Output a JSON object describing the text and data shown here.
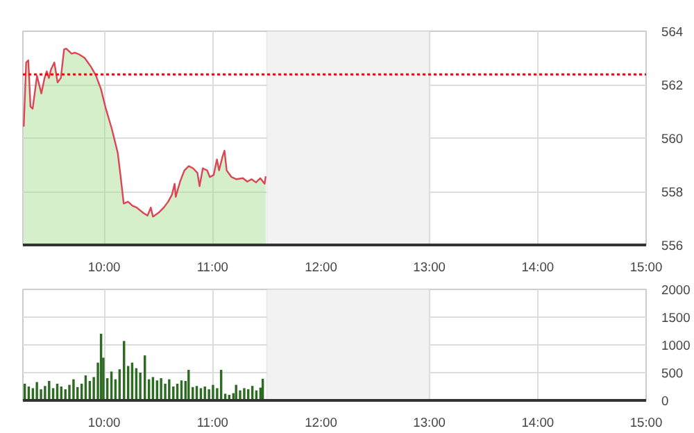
{
  "chart_data": [
    {
      "type": "area",
      "xlim": [
        9.25,
        15
      ],
      "ylim": [
        556,
        564
      ],
      "yticks": [
        556,
        558,
        560,
        562,
        564
      ],
      "xticks": [
        {
          "value": 10,
          "label": "10:00"
        },
        {
          "value": 11,
          "label": "11:00"
        },
        {
          "value": 12,
          "label": "12:00"
        },
        {
          "value": 13,
          "label": "13:00"
        },
        {
          "value": 14,
          "label": "14:00"
        },
        {
          "value": 15,
          "label": "15:00"
        }
      ],
      "grid": true,
      "ref_lines": [
        {
          "axis": "y",
          "value": 562.38,
          "color": "#ff0000",
          "line_style": "dotted"
        }
      ],
      "bands": [
        {
          "axis": "x",
          "from": 11.5,
          "to": 13,
          "color": "#f2f2f2"
        }
      ],
      "series": [
        {
          "type": "area",
          "color": "#9fdc8a",
          "x": [
            9.258,
            9.28,
            9.3,
            9.32,
            9.34,
            9.38,
            9.42,
            9.45,
            9.47,
            9.49,
            9.51,
            9.54,
            9.57,
            9.6,
            9.63,
            9.65,
            9.7,
            9.73,
            9.77,
            9.82,
            9.88,
            9.925,
            9.97,
            10.01,
            10.07,
            10.125,
            10.15,
            10.18,
            10.22,
            10.26,
            10.3,
            10.36,
            10.4,
            10.43,
            10.45,
            10.5,
            10.55,
            10.59,
            10.625,
            10.65,
            10.66,
            10.7,
            10.74,
            10.78,
            10.82,
            10.86,
            10.88,
            10.91,
            10.95,
            10.975,
            11.01,
            11.04,
            11.06,
            11.09,
            11.11,
            11.13,
            11.175,
            11.22,
            11.28,
            11.32,
            11.36,
            11.4,
            11.44,
            11.48,
            11.49
          ],
          "values": [
            560.43,
            562.83,
            562.91,
            561.18,
            561.1,
            562.33,
            561.67,
            562.25,
            562.5,
            562.25,
            562.58,
            562.83,
            562.08,
            562.25,
            563.32,
            563.35,
            563.16,
            563.2,
            563.13,
            563.0,
            562.66,
            562.33,
            561.84,
            561.18,
            560.35,
            559.45,
            558.62,
            557.55,
            557.62,
            557.47,
            557.4,
            557.2,
            557.1,
            557.4,
            557.06,
            557.2,
            557.4,
            557.62,
            557.88,
            558.29,
            557.8,
            558.37,
            558.79,
            558.95,
            558.87,
            558.7,
            558.2,
            558.87,
            558.79,
            558.54,
            558.62,
            559.2,
            558.79,
            559.28,
            559.53,
            558.79,
            558.54,
            558.46,
            558.5,
            558.37,
            558.46,
            558.34,
            558.5,
            558.29,
            558.57
          ]
        },
        {
          "type": "line",
          "color": "#dd4455",
          "x": [
            9.258,
            9.28,
            9.3,
            9.32,
            9.34,
            9.38,
            9.42,
            9.45,
            9.47,
            9.49,
            9.51,
            9.54,
            9.57,
            9.6,
            9.63,
            9.65,
            9.7,
            9.73,
            9.77,
            9.82,
            9.88,
            9.925,
            9.97,
            10.01,
            10.07,
            10.125,
            10.15,
            10.18,
            10.22,
            10.26,
            10.3,
            10.36,
            10.4,
            10.43,
            10.45,
            10.5,
            10.55,
            10.59,
            10.625,
            10.65,
            10.66,
            10.7,
            10.74,
            10.78,
            10.82,
            10.86,
            10.88,
            10.91,
            10.95,
            10.975,
            11.01,
            11.04,
            11.06,
            11.09,
            11.11,
            11.13,
            11.175,
            11.22,
            11.28,
            11.32,
            11.36,
            11.4,
            11.44,
            11.48,
            11.49
          ],
          "values": [
            560.43,
            562.83,
            562.91,
            561.18,
            561.1,
            562.33,
            561.67,
            562.25,
            562.5,
            562.25,
            562.58,
            562.83,
            562.08,
            562.25,
            563.32,
            563.35,
            563.16,
            563.2,
            563.13,
            563.0,
            562.66,
            562.33,
            561.84,
            561.18,
            560.35,
            559.45,
            558.62,
            557.55,
            557.62,
            557.47,
            557.4,
            557.2,
            557.1,
            557.4,
            557.06,
            557.2,
            557.4,
            557.62,
            557.88,
            558.29,
            557.8,
            558.37,
            558.79,
            558.95,
            558.87,
            558.7,
            558.2,
            558.87,
            558.79,
            558.54,
            558.62,
            559.2,
            558.79,
            559.28,
            559.53,
            558.79,
            558.54,
            558.46,
            558.5,
            558.37,
            558.46,
            558.34,
            558.5,
            558.29,
            558.57
          ]
        }
      ]
    },
    {
      "type": "bar",
      "xlim": [
        9.25,
        15
      ],
      "ylim": [
        0,
        2000
      ],
      "yticks": [
        0,
        500,
        1000,
        1500,
        2000
      ],
      "xticks": [
        {
          "value": 10,
          "label": "10:00"
        },
        {
          "value": 11,
          "label": "11:00"
        },
        {
          "value": 12,
          "label": "12:00"
        },
        {
          "value": 13,
          "label": "13:00"
        },
        {
          "value": 14,
          "label": "14:00"
        },
        {
          "value": 15,
          "label": "15:00"
        }
      ],
      "grid": true,
      "bands": [
        {
          "axis": "x",
          "from": 11.5,
          "to": 13,
          "color": "#f2f2f2"
        }
      ],
      "x": [
        9.267,
        9.304,
        9.342,
        9.379,
        9.417,
        9.454,
        9.492,
        9.529,
        9.567,
        9.604,
        9.642,
        9.679,
        9.717,
        9.754,
        9.792,
        9.829,
        9.867,
        9.904,
        9.942,
        9.971,
        9.992,
        10.029,
        10.067,
        10.104,
        10.142,
        10.183,
        10.221,
        10.258,
        10.296,
        10.333,
        10.375,
        10.413,
        10.45,
        10.488,
        10.525,
        10.563,
        10.6,
        10.638,
        10.675,
        10.713,
        10.75,
        10.779,
        10.817,
        10.854,
        10.892,
        10.929,
        10.967,
        11.004,
        11.042,
        11.079,
        11.117,
        11.154,
        11.192,
        11.217,
        11.254,
        11.292,
        11.329,
        11.367,
        11.404,
        11.442,
        11.463
      ],
      "series": [
        {
          "color": "#2e6b22",
          "values": [
            300,
            250,
            220,
            330,
            200,
            260,
            350,
            220,
            300,
            250,
            200,
            280,
            380,
            240,
            300,
            450,
            350,
            420,
            680,
            1200,
            770,
            400,
            520,
            380,
            560,
            1070,
            620,
            680,
            580,
            500,
            810,
            380,
            420,
            360,
            400,
            300,
            380,
            250,
            300,
            360,
            350,
            550,
            240,
            260,
            220,
            250,
            200,
            280,
            220,
            550,
            120,
            100,
            130,
            280,
            180,
            220,
            200,
            260,
            180,
            230,
            390
          ]
        }
      ]
    }
  ]
}
